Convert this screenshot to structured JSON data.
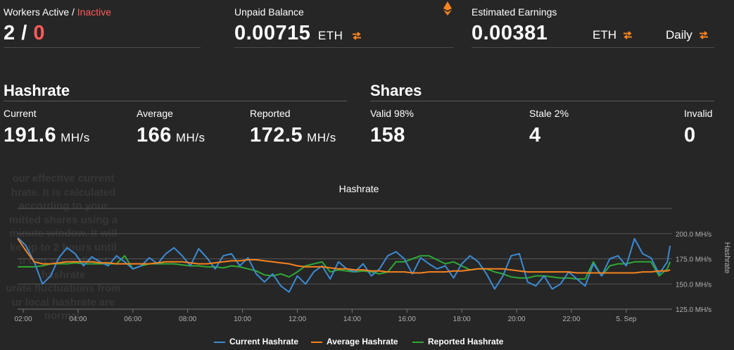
{
  "workers": {
    "label_active": "Workers Active",
    "separator": " / ",
    "label_inactive": "Inactive",
    "value_active": "2",
    "value_sep": " / ",
    "value_inactive": "0"
  },
  "unpaid": {
    "label": "Unpaid Balance",
    "value": "0.00715",
    "unit": "ETH",
    "icon": "ethereum-icon"
  },
  "earnings": {
    "label": "Estimated Earnings",
    "value": "0.00381",
    "unit": "ETH",
    "period": "Daily"
  },
  "hashrate": {
    "title": "Hashrate",
    "current_label": "Current",
    "current_value": "191.6",
    "current_unit": "MH/s",
    "average_label": "Average",
    "average_value": "166",
    "average_unit": "MH/s",
    "reported_label": "Reported",
    "reported_value": "172.5",
    "reported_unit": "MH/s"
  },
  "shares": {
    "title": "Shares",
    "valid_label": "Valid 98%",
    "valid_value": "158",
    "stale_label": "Stale 2%",
    "stale_value": "4",
    "invalid_label": "Invalid",
    "invalid_value": "0"
  },
  "tooltip_ghost": "our effective current\nhrate. It is calculated\naccording to your\nmitted shares using a\nminute window. It will\nke up to 2 hours until\nu can see a direct\nhashrate\nurate fluctuations from\nur local hashrate are\nnormal.",
  "colors": {
    "current": "#3b8bd4",
    "average": "#f58220",
    "reported": "#2fa835",
    "accent": "#f58220",
    "inactive": "#ff5a5a"
  },
  "chart_data": {
    "type": "line",
    "title": "Hashrate",
    "ylabel": "Hashrate",
    "ylim": [
      125,
      225
    ],
    "y_ticks": [
      "125.0 MH/s",
      "150.0 MH/s",
      "175.0 MH/s",
      "200.0 MH/s"
    ],
    "x_ticks": [
      "02:00",
      "04:00",
      "06:00",
      "08:00",
      "10:00",
      "12:00",
      "14:00",
      "16:00",
      "18:00",
      "20:00",
      "22:00",
      "5. Sep"
    ],
    "legend": [
      "Current Hashrate",
      "Average Hashrate",
      "Reported Hashrate"
    ],
    "x_hours": [
      1.8,
      2.1,
      2.4,
      2.7,
      3.0,
      3.3,
      3.6,
      3.9,
      4.2,
      4.5,
      4.8,
      5.1,
      5.4,
      5.7,
      6.0,
      6.3,
      6.6,
      6.9,
      7.2,
      7.5,
      7.8,
      8.1,
      8.4,
      8.7,
      9.0,
      9.3,
      9.6,
      9.9,
      10.2,
      10.5,
      10.8,
      11.1,
      11.4,
      11.7,
      12.0,
      12.3,
      12.6,
      12.9,
      13.2,
      13.5,
      13.8,
      14.1,
      14.4,
      14.7,
      15.0,
      15.3,
      15.6,
      15.9,
      16.2,
      16.5,
      16.8,
      17.1,
      17.4,
      17.7,
      18.0,
      18.3,
      18.6,
      18.9,
      19.2,
      19.5,
      19.8,
      20.1,
      20.4,
      20.7,
      21.0,
      21.3,
      21.6,
      21.9,
      22.2,
      22.5,
      22.8,
      23.1,
      23.4,
      23.7,
      24.0,
      24.3,
      24.6,
      24.9,
      25.2,
      25.5,
      25.6
    ],
    "series": [
      {
        "name": "Current Hashrate",
        "values": [
          196,
          188,
          172,
          150,
          158,
          176,
          186,
          180,
          168,
          177,
          172,
          168,
          178,
          172,
          165,
          168,
          176,
          170,
          180,
          186,
          178,
          168,
          185,
          176,
          165,
          178,
          180,
          168,
          176,
          160,
          152,
          160,
          148,
          142,
          158,
          150,
          162,
          168,
          155,
          172,
          165,
          162,
          170,
          158,
          165,
          178,
          182,
          175,
          160,
          176,
          170,
          165,
          168,
          156,
          170,
          178,
          172,
          160,
          145,
          158,
          178,
          180,
          152,
          148,
          158,
          145,
          150,
          162,
          155,
          148,
          170,
          158,
          175,
          178,
          168,
          195,
          180,
          176,
          160,
          172,
          188
        ]
      },
      {
        "name": "Average Hashrate",
        "values": [
          195,
          183,
          172,
          170,
          170,
          171,
          172,
          172,
          172,
          172,
          171,
          171,
          170,
          170,
          170,
          170,
          170,
          171,
          172,
          172,
          172,
          171,
          170,
          170,
          171,
          172,
          173,
          173,
          174,
          174,
          173,
          172,
          171,
          170,
          168,
          167,
          167,
          167,
          166,
          165,
          165,
          164,
          164,
          163,
          163,
          162,
          162,
          162,
          161,
          161,
          162,
          162,
          162,
          163,
          163,
          164,
          165,
          165,
          165,
          165,
          164,
          163,
          162,
          162,
          162,
          162,
          162,
          162,
          161,
          161,
          161,
          161,
          161,
          161,
          161,
          161,
          162,
          162,
          163,
          163,
          164
        ]
      },
      {
        "name": "Reported Hashrate",
        "values": [
          167,
          167,
          167,
          168,
          170,
          170,
          170,
          171,
          170,
          170,
          170,
          170,
          170,
          178,
          165,
          168,
          170,
          170,
          170,
          170,
          169,
          168,
          168,
          167,
          167,
          166,
          168,
          167,
          165,
          163,
          159,
          158,
          160,
          157,
          162,
          168,
          170,
          172,
          162,
          164,
          163,
          162,
          163,
          162,
          160,
          162,
          172,
          172,
          175,
          178,
          178,
          174,
          170,
          172,
          168,
          164,
          165,
          165,
          162,
          160,
          157,
          156,
          156,
          158,
          158,
          157,
          156,
          156,
          155,
          155,
          172,
          158,
          168,
          170,
          170,
          172,
          172,
          172,
          158,
          165,
          172
        ]
      }
    ]
  }
}
